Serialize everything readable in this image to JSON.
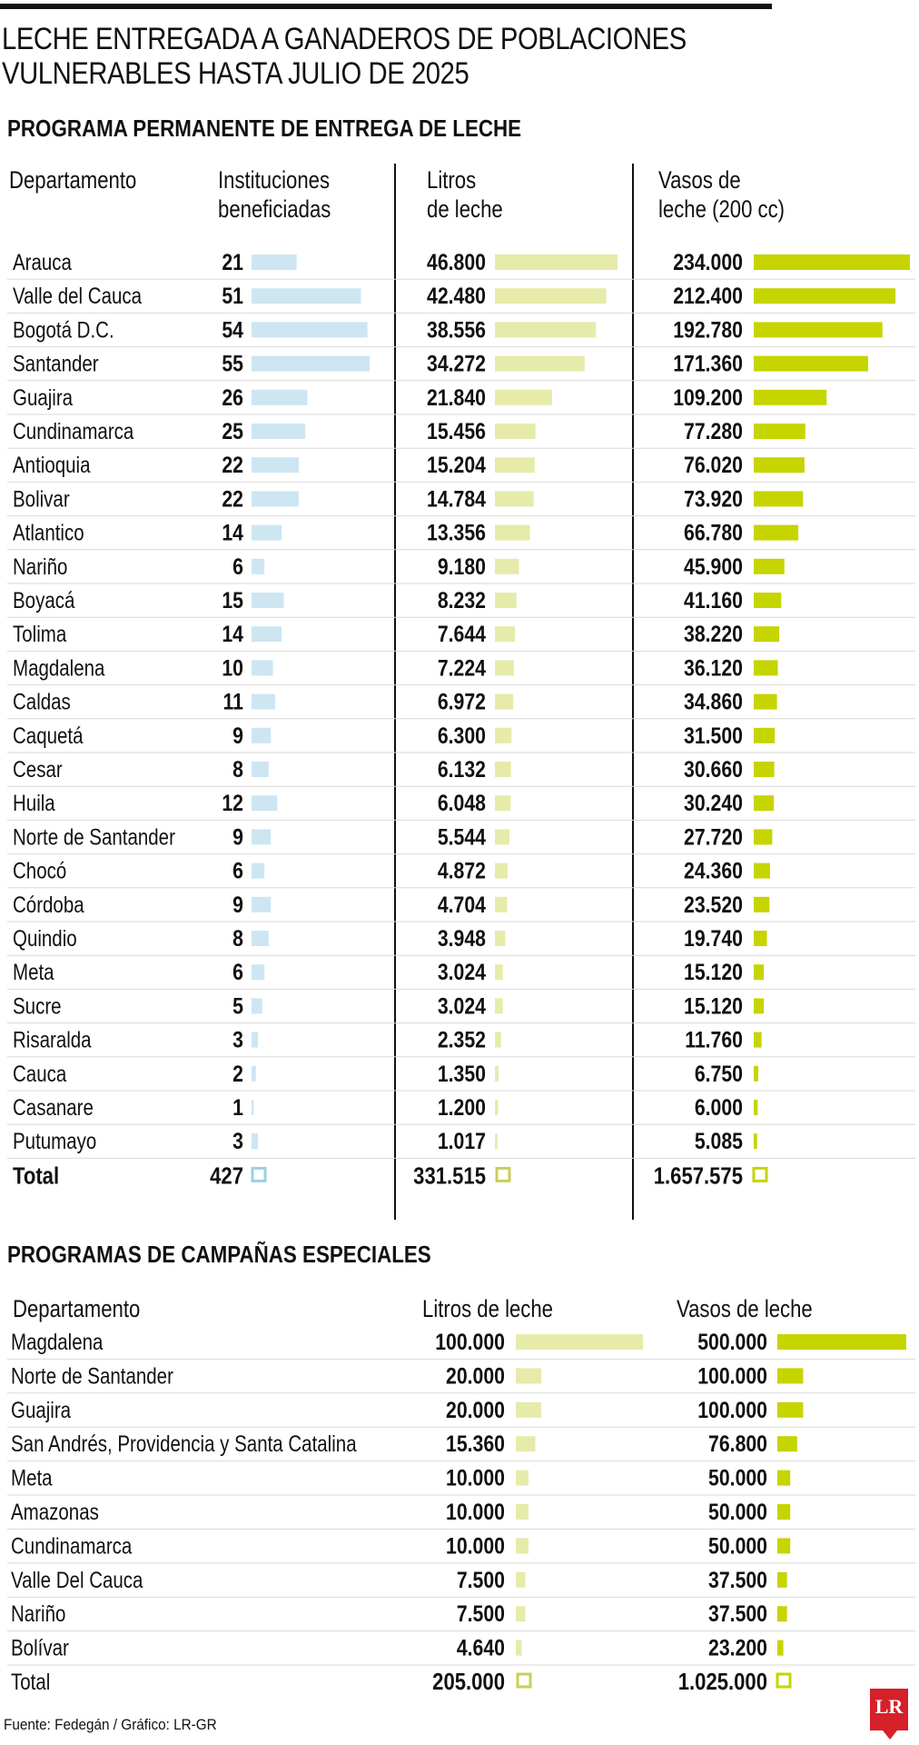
{
  "title": "LECHE ENTREGADA A GANADEROS DE POBLACIONES VULNERABLES HASTA JULIO DE 2025",
  "colors": {
    "instituciones": "#cde6f2",
    "litros": "#e6ebaa",
    "vasos": "#c6d400",
    "line": "#d9d9d9",
    "text": "#111111"
  },
  "section1": {
    "title": "PROGRAMA PERMANENTE DE ENTREGA DE LECHE",
    "headers": {
      "departamento": "Departamento",
      "instituciones": "Instituciones\nbeneficiadas",
      "litros": "Litros\nde leche",
      "vasos": "Vasos de\nleche (200 cc)"
    }
  },
  "section2": {
    "title": "PROGRAMAS DE CAMPAÑAS ESPECIALES",
    "headers": {
      "departamento": "Departamento",
      "litros": "Litros de leche",
      "vasos": "Vasos de leche"
    }
  },
  "source": "Fuente: Fedegán / Gráfico: LR-GR",
  "logo_text": "LR",
  "chart_data": [
    {
      "type": "table",
      "title": "PROGRAMA PERMANENTE DE ENTREGA DE LECHE",
      "columns": [
        "Departamento",
        "Instituciones beneficiadas",
        "Litros de leche",
        "Vasos de leche (200 cc)"
      ],
      "rows": [
        {
          "name": "Arauca",
          "inst": 21,
          "inst_label": "21",
          "litros": 46800,
          "litros_label": "46.800",
          "vasos": 234000,
          "vasos_label": "234.000"
        },
        {
          "name": "Valle del Cauca",
          "inst": 51,
          "inst_label": "51",
          "litros": 42480,
          "litros_label": "42.480",
          "vasos": 212400,
          "vasos_label": "212.400"
        },
        {
          "name": "Bogotá D.C.",
          "inst": 54,
          "inst_label": "54",
          "litros": 38556,
          "litros_label": "38.556",
          "vasos": 192780,
          "vasos_label": "192.780"
        },
        {
          "name": "Santander",
          "inst": 55,
          "inst_label": "55",
          "litros": 34272,
          "litros_label": "34.272",
          "vasos": 171360,
          "vasos_label": "171.360"
        },
        {
          "name": "Guajira",
          "inst": 26,
          "inst_label": "26",
          "litros": 21840,
          "litros_label": "21.840",
          "vasos": 109200,
          "vasos_label": "109.200"
        },
        {
          "name": "Cundinamarca",
          "inst": 25,
          "inst_label": "25",
          "litros": 15456,
          "litros_label": "15.456",
          "vasos": 77280,
          "vasos_label": "77.280"
        },
        {
          "name": "Antioquia",
          "inst": 22,
          "inst_label": "22",
          "litros": 15204,
          "litros_label": "15.204",
          "vasos": 76020,
          "vasos_label": "76.020"
        },
        {
          "name": "Bolivar",
          "inst": 22,
          "inst_label": "22",
          "litros": 14784,
          "litros_label": "14.784",
          "vasos": 73920,
          "vasos_label": "73.920"
        },
        {
          "name": "Atlantico",
          "inst": 14,
          "inst_label": "14",
          "litros": 13356,
          "litros_label": "13.356",
          "vasos": 66780,
          "vasos_label": "66.780"
        },
        {
          "name": "Nariño",
          "inst": 6,
          "inst_label": "6",
          "litros": 9180,
          "litros_label": "9.180",
          "vasos": 45900,
          "vasos_label": "45.900"
        },
        {
          "name": "Boyacá",
          "inst": 15,
          "inst_label": "15",
          "litros": 8232,
          "litros_label": "8.232",
          "vasos": 41160,
          "vasos_label": "41.160"
        },
        {
          "name": "Tolima",
          "inst": 14,
          "inst_label": "14",
          "litros": 7644,
          "litros_label": "7.644",
          "vasos": 38220,
          "vasos_label": "38.220"
        },
        {
          "name": "Magdalena",
          "inst": 10,
          "inst_label": "10",
          "litros": 7224,
          "litros_label": "7.224",
          "vasos": 36120,
          "vasos_label": "36.120"
        },
        {
          "name": "Caldas",
          "inst": 11,
          "inst_label": "11",
          "litros": 6972,
          "litros_label": "6.972",
          "vasos": 34860,
          "vasos_label": "34.860"
        },
        {
          "name": "Caquetá",
          "inst": 9,
          "inst_label": "9",
          "litros": 6300,
          "litros_label": "6.300",
          "vasos": 31500,
          "vasos_label": "31.500"
        },
        {
          "name": "Cesar",
          "inst": 8,
          "inst_label": "8",
          "litros": 6132,
          "litros_label": "6.132",
          "vasos": 30660,
          "vasos_label": "30.660"
        },
        {
          "name": "Huila",
          "inst": 12,
          "inst_label": "12",
          "litros": 6048,
          "litros_label": "6.048",
          "vasos": 30240,
          "vasos_label": "30.240"
        },
        {
          "name": "Norte de Santander",
          "inst": 9,
          "inst_label": "9",
          "litros": 5544,
          "litros_label": "5.544",
          "vasos": 27720,
          "vasos_label": "27.720"
        },
        {
          "name": "Chocó",
          "inst": 6,
          "inst_label": "6",
          "litros": 4872,
          "litros_label": "4.872",
          "vasos": 24360,
          "vasos_label": "24.360"
        },
        {
          "name": "Córdoba",
          "inst": 9,
          "inst_label": "9",
          "litros": 4704,
          "litros_label": "4.704",
          "vasos": 23520,
          "vasos_label": "23.520"
        },
        {
          "name": "Quindio",
          "inst": 8,
          "inst_label": "8",
          "litros": 3948,
          "litros_label": "3.948",
          "vasos": 19740,
          "vasos_label": "19.740"
        },
        {
          "name": "Meta",
          "inst": 6,
          "inst_label": "6",
          "litros": 3024,
          "litros_label": "3.024",
          "vasos": 15120,
          "vasos_label": "15.120"
        },
        {
          "name": "Sucre",
          "inst": 5,
          "inst_label": "5",
          "litros": 3024,
          "litros_label": "3.024",
          "vasos": 15120,
          "vasos_label": "15.120"
        },
        {
          "name": "Risaralda",
          "inst": 3,
          "inst_label": "3",
          "litros": 2352,
          "litros_label": "2.352",
          "vasos": 11760,
          "vasos_label": "11.760"
        },
        {
          "name": "Cauca",
          "inst": 2,
          "inst_label": "2",
          "litros": 1350,
          "litros_label": "1.350",
          "vasos": 6750,
          "vasos_label": "6.750"
        },
        {
          "name": "Casanare",
          "inst": 1,
          "inst_label": "1",
          "litros": 1200,
          "litros_label": "1.200",
          "vasos": 6000,
          "vasos_label": "6.000"
        },
        {
          "name": "Putumayo",
          "inst": 3,
          "inst_label": "3",
          "litros": 1017,
          "litros_label": "1.017",
          "vasos": 5085,
          "vasos_label": "5.085"
        }
      ],
      "total": {
        "name": "Total",
        "inst_label": "427",
        "litros_label": "331.515",
        "vasos_label": "1.657.575"
      }
    },
    {
      "type": "table",
      "title": "PROGRAMAS DE CAMPAÑAS ESPECIALES",
      "columns": [
        "Departamento",
        "Litros de leche",
        "Vasos de leche"
      ],
      "rows": [
        {
          "name": "Magdalena",
          "litros": 100000,
          "litros_label": "100.000",
          "vasos": 500000,
          "vasos_label": "500.000"
        },
        {
          "name": "Norte de Santander",
          "litros": 20000,
          "litros_label": "20.000",
          "vasos": 100000,
          "vasos_label": "100.000"
        },
        {
          "name": "Guajira",
          "litros": 20000,
          "litros_label": "20.000",
          "vasos": 100000,
          "vasos_label": "100.000"
        },
        {
          "name": "San Andrés, Providencia y Santa Catalina",
          "litros": 15360,
          "litros_label": "15.360",
          "vasos": 76800,
          "vasos_label": "76.800"
        },
        {
          "name": "Meta",
          "litros": 10000,
          "litros_label": "10.000",
          "vasos": 50000,
          "vasos_label": "50.000"
        },
        {
          "name": "Amazonas",
          "litros": 10000,
          "litros_label": "10.000",
          "vasos": 50000,
          "vasos_label": "50.000"
        },
        {
          "name": "Cundinamarca",
          "litros": 10000,
          "litros_label": "10.000",
          "vasos": 50000,
          "vasos_label": "50.000"
        },
        {
          "name": "Valle Del Cauca",
          "litros": 7500,
          "litros_label": "7.500",
          "vasos": 37500,
          "vasos_label": "37.500"
        },
        {
          "name": "Nariño",
          "litros": 7500,
          "litros_label": "7.500",
          "vasos": 37500,
          "vasos_label": "37.500"
        },
        {
          "name": "Bolívar",
          "litros": 4640,
          "litros_label": "4.640",
          "vasos": 23200,
          "vasos_label": "23.200"
        }
      ],
      "total": {
        "name": "Total",
        "litros_label": "205.000",
        "vasos_label": "1.025.000"
      }
    }
  ]
}
